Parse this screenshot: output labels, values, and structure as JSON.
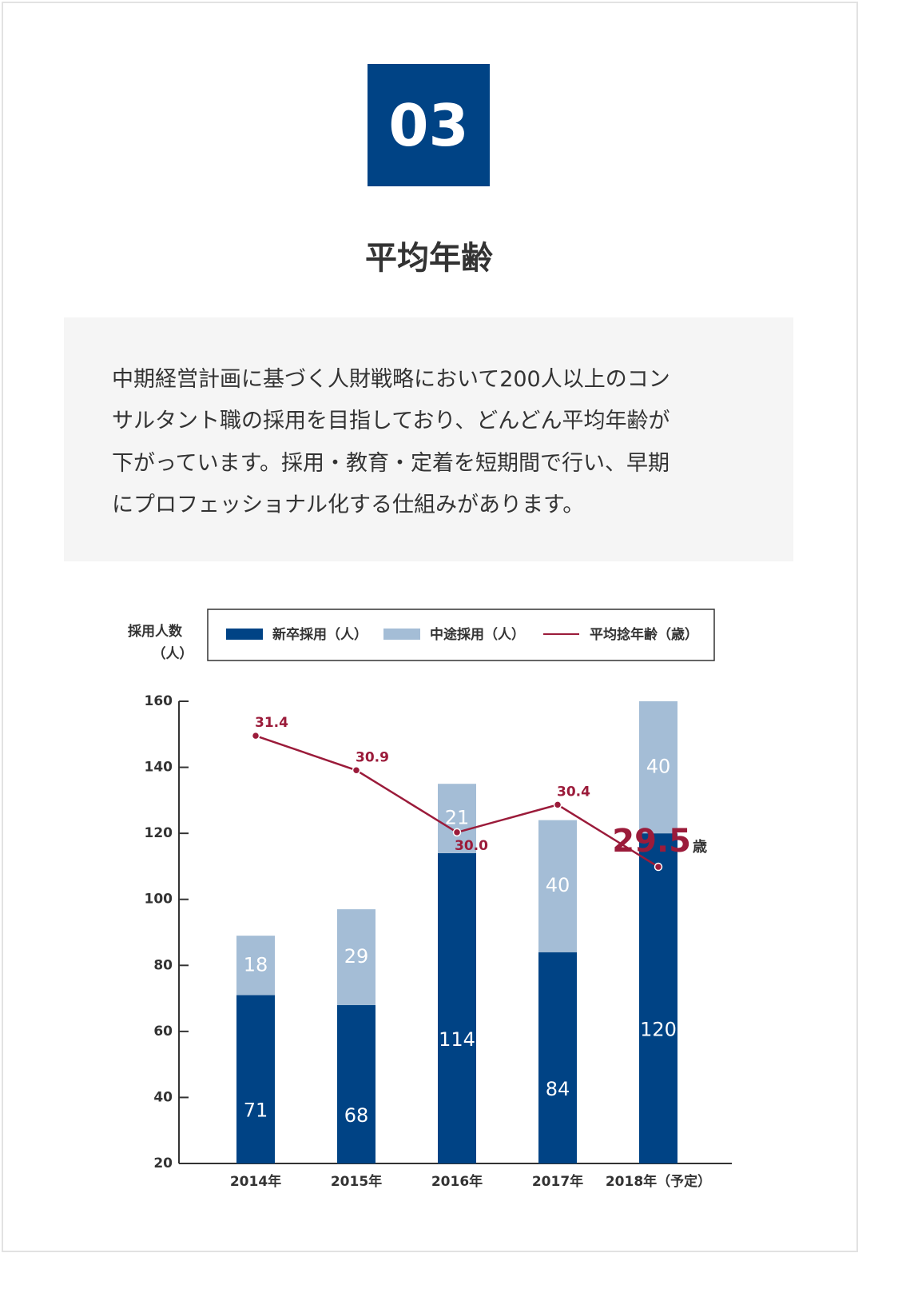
{
  "header": {
    "number": "03",
    "title": "平均年齢"
  },
  "description": [
    "中期経営計画に基づく人財戦略において200人以上のコン",
    "サルタント職の採用を目指しており、どんどん平均年齢が",
    "下がっています。採用・教育・定着を短期間で行い、早期",
    "にプロフェッショナル化する仕組みがあります。"
  ],
  "chart_data": {
    "type": "bar",
    "stacked": true,
    "ylabel": [
      "採用人数",
      "（人）"
    ],
    "categories": [
      "2014年",
      "2015年",
      "2016年",
      "2017年",
      "2018年（予定）"
    ],
    "series": [
      {
        "name": "新卒採用（人）",
        "color": "#004385",
        "values": [
          71,
          68,
          114,
          84,
          120
        ]
      },
      {
        "name": "中途採用（人）",
        "color": "#a4bdd6",
        "values": [
          18,
          29,
          21,
          40,
          40
        ]
      },
      {
        "name": "平均捻年齢（歳）",
        "type": "line",
        "axis": "y2",
        "color": "#9b1b3a",
        "values": [
          31.4,
          30.9,
          30.0,
          30.4,
          29.5
        ],
        "value_labels": [
          "31.4",
          "30.9",
          "30.0",
          "30.4",
          "29.5"
        ]
      }
    ],
    "annotation": "歳",
    "ylim": [
      20,
      160
    ],
    "yticks": [
      20,
      40,
      60,
      80,
      100,
      120,
      140,
      160
    ],
    "y2lim": [
      25.2,
      31.9
    ]
  }
}
